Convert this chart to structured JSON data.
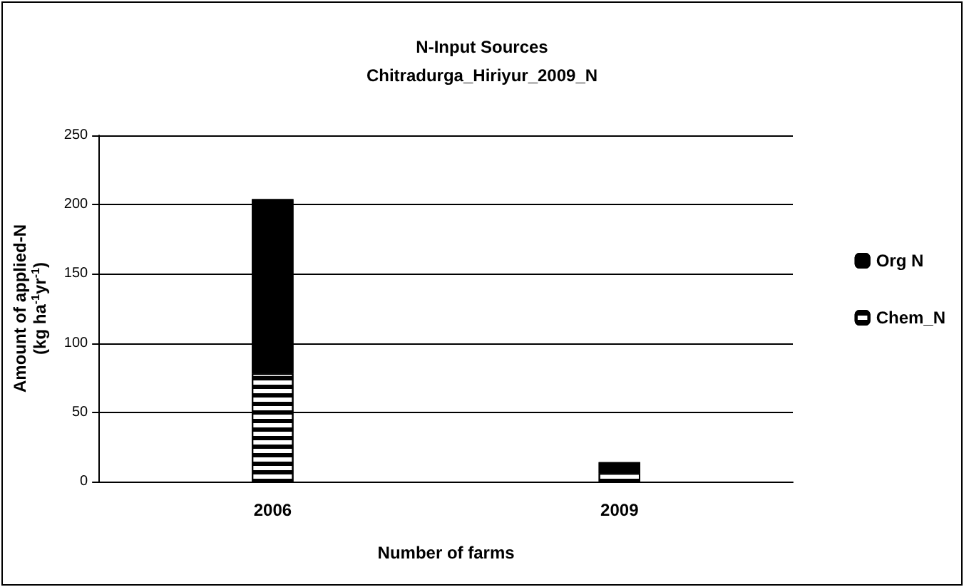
{
  "chart_data": {
    "type": "bar",
    "title": "N-Input Sources",
    "subtitle": "Chitradurga_Hiriyur_2009_N",
    "xlabel": "Number of farms",
    "ylabel": "Amount of applied-N\n(kg ha$^{-1}$yr$^{-1}$)",
    "categories": [
      "2006",
      "2009"
    ],
    "stacked": true,
    "series": [
      {
        "name": "Chem_N",
        "color": "#ffffff",
        "values": [
          78,
          6
        ]
      },
      {
        "name": "Org N",
        "color": "#000000",
        "values": [
          126,
          8
        ]
      }
    ],
    "ylim": [
      0,
      250
    ],
    "yticks": [
      0,
      50,
      100,
      150,
      200,
      250
    ],
    "grid": "y",
    "legend": "right"
  }
}
